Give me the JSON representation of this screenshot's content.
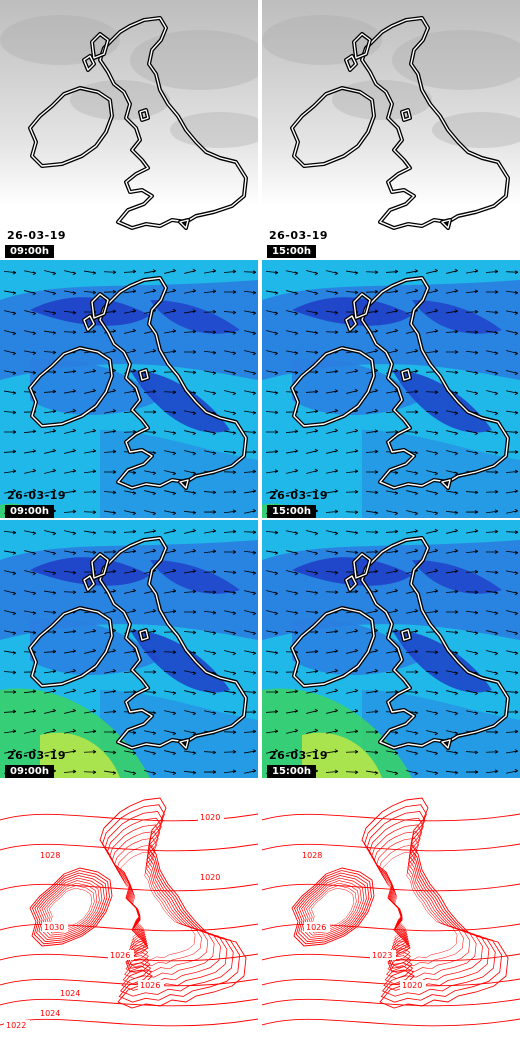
{
  "panels": [
    {
      "kind": "cloud",
      "date": "26-03-19",
      "time": "09:00h"
    },
    {
      "kind": "cloud",
      "date": "26-03-19",
      "time": "15:00h"
    },
    {
      "kind": "wind",
      "date": "26-03-19",
      "time": "09:00h"
    },
    {
      "kind": "wind",
      "date": "26-03-19",
      "time": "15:00h"
    },
    {
      "kind": "wind2",
      "date": "26-03-19",
      "time": "09:00h"
    },
    {
      "kind": "wind2",
      "date": "26-03-19",
      "time": "15:00h"
    },
    {
      "kind": "pressure",
      "isobars": [
        "1028",
        "1030",
        "1026",
        "1026",
        "1024",
        "1024",
        "1022",
        "1020",
        "1020"
      ]
    },
    {
      "kind": "pressure",
      "isobars": [
        "1028",
        "1026",
        "1023",
        "1020"
      ]
    }
  ],
  "colors": {
    "coast_fill": "#000",
    "coast_line": "#fff",
    "wind_dark": "#1f3fc8",
    "wind_mid": "#2a7ee0",
    "wind_light": "#1fb8e8",
    "wind_green": "#39d26a",
    "wind_yellow": "#b6e64a",
    "isobar": "#ff0000"
  }
}
